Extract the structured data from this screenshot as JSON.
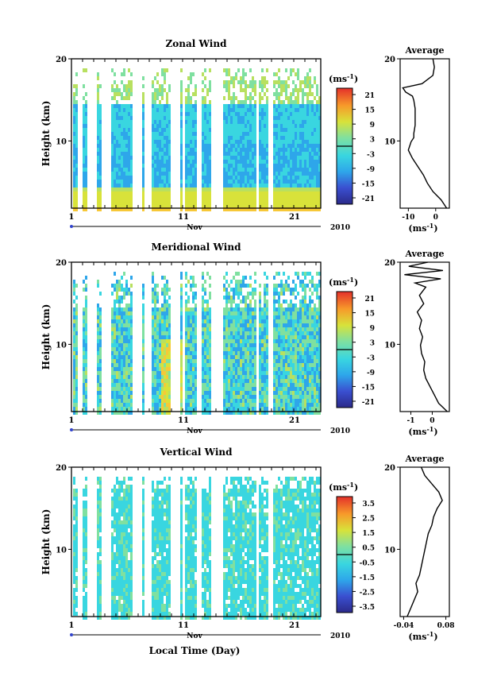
{
  "figure": {
    "xlabel": "Local Time (Day)",
    "month_label": "Nov",
    "year_label": "2010",
    "x_ticks": [
      "1",
      "11",
      "21"
    ],
    "y_ticks": [
      "20",
      "10"
    ],
    "ylabel": "Height (km)",
    "unit_label": "(ms",
    "unit_sup": "-1",
    "average_title": "Average"
  },
  "chart_data": [
    {
      "type": "heatmap",
      "title": "Zonal Wind",
      "colorbar_ticks": [
        "21",
        "15",
        "9",
        "3",
        "-3",
        "-9",
        "-15",
        "-21"
      ],
      "colorbar_range": [
        -24,
        24
      ],
      "profile": {
        "xticks": [
          "-10",
          "0"
        ],
        "xlim": [
          -13,
          5
        ],
        "heights_km": [
          2,
          3,
          4,
          5,
          6,
          7,
          8,
          9,
          10,
          10.5,
          11,
          12,
          13,
          14,
          15,
          15.5,
          16,
          16.5,
          17,
          18,
          19,
          20
        ],
        "values": [
          4,
          2,
          -1,
          -3,
          -4.5,
          -6.5,
          -8.5,
          -10,
          -9,
          -8,
          -8,
          -7.5,
          -7.5,
          -7.5,
          -8,
          -8.5,
          -11,
          -12,
          -5,
          -1,
          -0.5,
          -1
        ]
      }
    },
    {
      "type": "heatmap",
      "title": "Meridional Wind",
      "colorbar_ticks": [
        "21",
        "15",
        "9",
        "3",
        "-3",
        "-9",
        "-15",
        "-21"
      ],
      "colorbar_range": [
        -24,
        24
      ],
      "profile": {
        "xticks": [
          "-1",
          "0"
        ],
        "xlim": [
          -1.5,
          0.8
        ],
        "heights_km": [
          2,
          2.5,
          3,
          4,
          5,
          6,
          7,
          8,
          9,
          10,
          11,
          12,
          13,
          14,
          15,
          16,
          17,
          17.5,
          18,
          18.5,
          19,
          19.5,
          20
        ],
        "values": [
          0.7,
          0.5,
          0.3,
          0.1,
          -0.1,
          -0.3,
          -0.4,
          -0.35,
          -0.5,
          -0.55,
          -0.45,
          -0.6,
          -0.5,
          -0.7,
          -0.4,
          -0.6,
          -0.3,
          -0.8,
          0.4,
          -1.3,
          0.5,
          -1.1,
          -0.2
        ]
      }
    },
    {
      "type": "heatmap",
      "title": "Vertical Wind",
      "colorbar_ticks": [
        "3.5",
        "2.5",
        "1.5",
        "0.5",
        "-0.5",
        "-1.5",
        "-2.5",
        "-3.5"
      ],
      "colorbar_range": [
        -4,
        4
      ],
      "profile": {
        "xticks": [
          "-0.04",
          "0.08"
        ],
        "xlim": [
          -0.05,
          0.09
        ],
        "heights_km": [
          2,
          3,
          4,
          5,
          6,
          7,
          8,
          9,
          10,
          11,
          12,
          13,
          14,
          15,
          16,
          17,
          18,
          19,
          20
        ],
        "values": [
          -0.03,
          -0.02,
          -0.01,
          0.0,
          -0.005,
          0.005,
          0.01,
          0.015,
          0.02,
          0.025,
          0.03,
          0.04,
          0.045,
          0.055,
          0.07,
          0.06,
          0.04,
          0.02,
          0.01
        ]
      }
    }
  ]
}
